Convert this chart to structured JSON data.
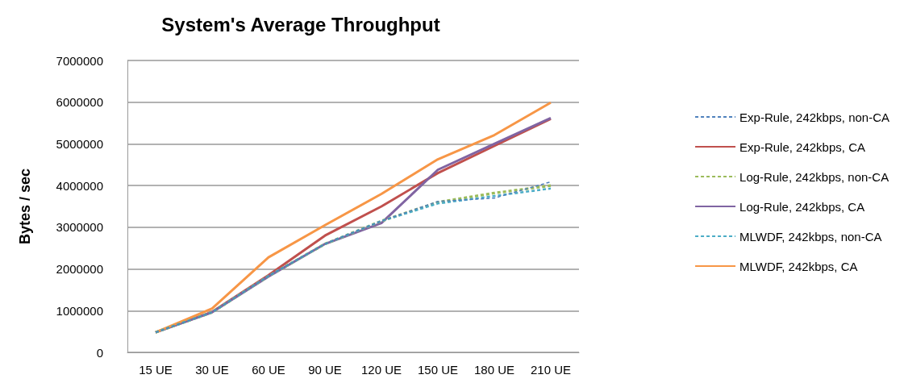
{
  "chart_data": {
    "type": "line",
    "title": "System's Average Throughput",
    "ylabel": "Bytes / sec",
    "categories": [
      "15 UE",
      "30 UE",
      "60 UE",
      "90 UE",
      "120 UE",
      "150 UE",
      "180 UE",
      "210 UE"
    ],
    "ylim": [
      0,
      7000000
    ],
    "yticks": [
      0,
      1000000,
      2000000,
      3000000,
      4000000,
      5000000,
      6000000,
      7000000
    ],
    "grid": "y",
    "legend": "right",
    "marker": "none",
    "series": [
      {
        "name": "Exp-Rule, 242kbps, non-CA",
        "color": "#4f81bd",
        "line_style": "dashed",
        "values": [
          480000,
          960000,
          1830000,
          2600000,
          3150000,
          3620000,
          3700000,
          4090000
        ]
      },
      {
        "name": "Exp-Rule, 242kbps, CA",
        "color": "#c0504d",
        "line_style": "solid",
        "values": [
          480000,
          970000,
          1850000,
          2800000,
          3500000,
          4300000,
          4950000,
          5600000
        ]
      },
      {
        "name": "Log-Rule, 242kbps, non-CA",
        "color": "#9bbb59",
        "line_style": "dashed",
        "values": [
          480000,
          960000,
          1830000,
          2600000,
          3150000,
          3600000,
          3820000,
          4000000
        ]
      },
      {
        "name": "Log-Rule, 242kbps, CA",
        "color": "#8064a2",
        "line_style": "solid",
        "values": [
          480000,
          960000,
          1820000,
          2600000,
          3100000,
          4380000,
          5000000,
          5620000
        ]
      },
      {
        "name": "MLWDF, 242kbps, non-CA",
        "color": "#4bacc6",
        "line_style": "dashed",
        "values": [
          480000,
          960000,
          1830000,
          2600000,
          3150000,
          3570000,
          3750000,
          3930000
        ]
      },
      {
        "name": "MLWDF, 242kbps, CA",
        "color": "#f79646",
        "line_style": "solid",
        "values": [
          480000,
          1050000,
          2280000,
          3050000,
          3800000,
          4630000,
          5210000,
          5990000
        ]
      }
    ]
  }
}
